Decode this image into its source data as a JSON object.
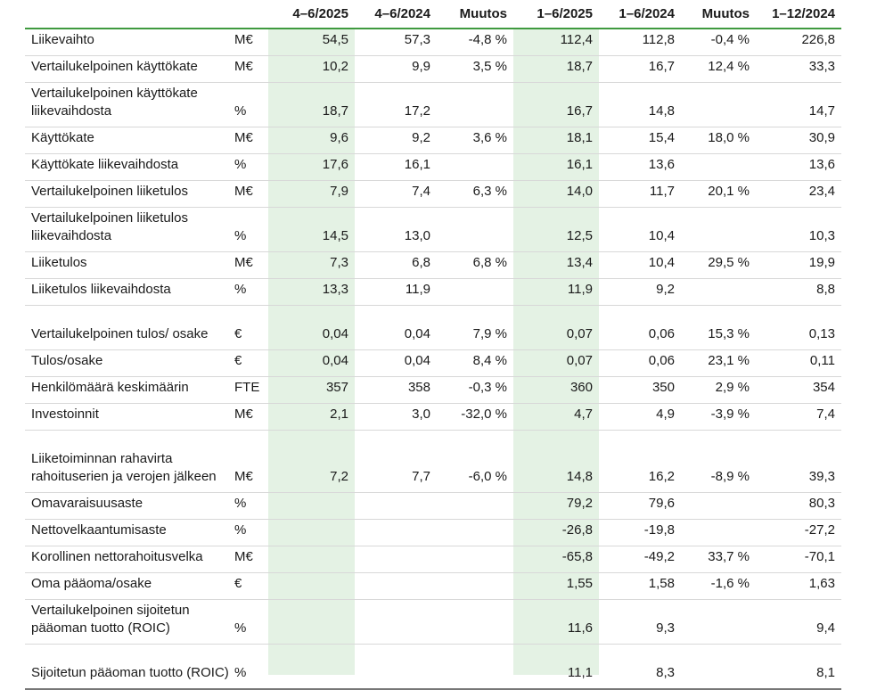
{
  "header": [
    "",
    "",
    "4–6/2025",
    "4–6/2024",
    "Muutos",
    "1–6/2025",
    "1–6/2024",
    "Muutos",
    "1–12/2024"
  ],
  "rows": [
    {
      "label": "Liikevaihto",
      "unit": "M€",
      "v": [
        "54,5",
        "57,3",
        "-4,8 %",
        "112,4",
        "112,8",
        "-0,4 %",
        "226,8"
      ]
    },
    {
      "label": "Vertailukelpoinen käyttökate",
      "unit": "M€",
      "v": [
        "10,2",
        "9,9",
        "3,5 %",
        "18,7",
        "16,7",
        "12,4 %",
        "33,3"
      ]
    },
    {
      "label": "Vertailukelpoinen käyttökate liikevaihdosta",
      "unit": "%",
      "v": [
        "18,7",
        "17,2",
        "",
        "16,7",
        "14,8",
        "",
        "14,7"
      ]
    },
    {
      "label": "Käyttökate",
      "unit": "M€",
      "v": [
        "9,6",
        "9,2",
        "3,6 %",
        "18,1",
        "15,4",
        "18,0 %",
        "30,9"
      ]
    },
    {
      "label": "Käyttökate liikevaihdosta",
      "unit": "%",
      "v": [
        "17,6",
        "16,1",
        "",
        "16,1",
        "13,6",
        "",
        "13,6"
      ]
    },
    {
      "label": "Vertailukelpoinen liiketulos",
      "unit": "M€",
      "v": [
        "7,9",
        "7,4",
        "6,3 %",
        "14,0",
        "11,7",
        "20,1 %",
        "23,4"
      ]
    },
    {
      "label": "Vertailukelpoinen liiketulos liikevaihdosta",
      "unit": "%",
      "v": [
        "14,5",
        "13,0",
        "",
        "12,5",
        "10,4",
        "",
        "10,3"
      ]
    },
    {
      "label": "Liiketulos",
      "unit": "M€",
      "v": [
        "7,3",
        "6,8",
        "6,8 %",
        "13,4",
        "10,4",
        "29,5 %",
        "19,9"
      ]
    },
    {
      "label": "Liiketulos liikevaihdosta",
      "unit": "%",
      "v": [
        "13,3",
        "11,9",
        "",
        "11,9",
        "9,2",
        "",
        "8,8"
      ]
    },
    {
      "label": "Vertailukelpoinen tulos/ osake",
      "unit": "€",
      "v": [
        "0,04",
        "0,04",
        "7,9 %",
        "0,07",
        "0,06",
        "15,3 %",
        "0,13"
      ]
    },
    {
      "label": "Tulos/osake",
      "unit": "€",
      "v": [
        "0,04",
        "0,04",
        "8,4 %",
        "0,07",
        "0,06",
        "23,1 %",
        "0,11"
      ]
    },
    {
      "label": "Henkilömäärä keskimäärin",
      "unit": "FTE",
      "v": [
        "357",
        "358",
        "-0,3 %",
        "360",
        "350",
        "2,9 %",
        "354"
      ]
    },
    {
      "label": "Investoinnit",
      "unit": "M€",
      "v": [
        "2,1",
        "3,0",
        "-32,0 %",
        "4,7",
        "4,9",
        "-3,9 %",
        "7,4"
      ]
    },
    {
      "label": "Liiketoiminnan rahavirta rahoituserien ja verojen jälkeen",
      "unit": "M€",
      "v": [
        "7,2",
        "7,7",
        "-6,0 %",
        "14,8",
        "16,2",
        "-8,9 %",
        "39,3"
      ]
    },
    {
      "label": "Omavaraisuusaste",
      "unit": "%",
      "v": [
        "",
        "",
        "",
        "79,2",
        "79,6",
        "",
        "80,3"
      ]
    },
    {
      "label": "Nettovelkaantumisaste",
      "unit": "%",
      "v": [
        "",
        "",
        "",
        "-26,8",
        "-19,8",
        "",
        "-27,2"
      ]
    },
    {
      "label": "Korollinen nettorahoitusvelka",
      "unit": "M€",
      "v": [
        "",
        "",
        "",
        "-65,8",
        "-49,2",
        "33,7 %",
        "-70,1"
      ]
    },
    {
      "label": "Oma pääoma/osake",
      "unit": "€",
      "v": [
        "",
        "",
        "",
        "1,55",
        "1,58",
        "-1,6 %",
        "1,63"
      ]
    },
    {
      "label": "Vertailukelpoinen sijoitetun pääoman tuotto (ROIC)",
      "unit": "%",
      "v": [
        "",
        "",
        "",
        "11,6",
        "9,3",
        "",
        "9,4"
      ]
    },
    {
      "label": "Sijoitetun pääoman tuotto (ROIC)",
      "unit": "%",
      "v": [
        "",
        "",
        "",
        "11,1",
        "8,3",
        "",
        "8,1"
      ]
    }
  ],
  "colors": {
    "highlight": "#e4f2e4",
    "header_rule": "#3f9a3f",
    "row_rule": "#d8d8d8"
  }
}
